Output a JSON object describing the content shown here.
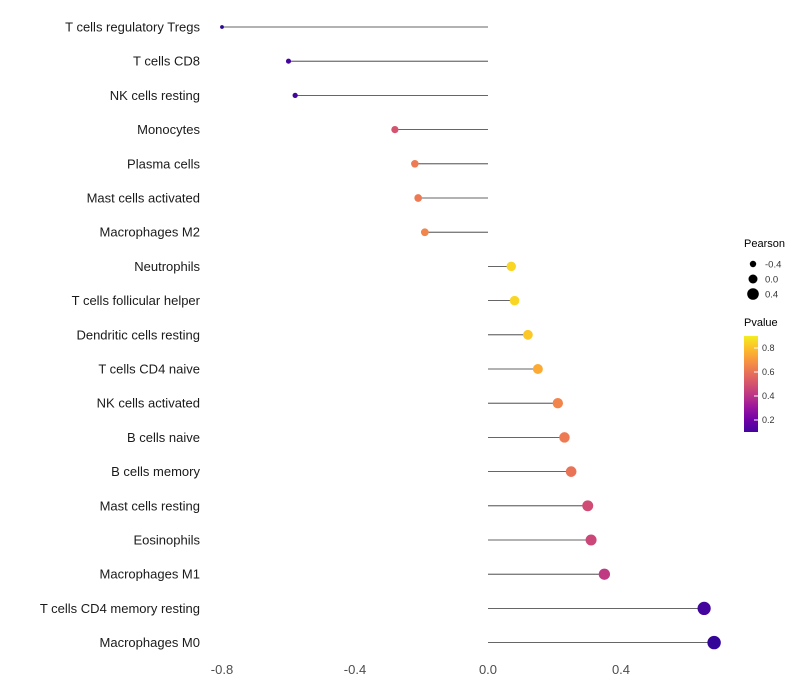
{
  "chart_data": {
    "type": "lollipop",
    "orientation": "horizontal",
    "title": "",
    "xlabel": "",
    "ylabel": "",
    "xlim": [
      -0.87,
      0.76
    ],
    "x_ticks": [
      "-0.8",
      "-0.4",
      "0.0",
      "0.4"
    ],
    "x_tick_values": [
      -0.8,
      -0.4,
      0.0,
      0.4
    ],
    "grid": false,
    "categories": [
      "T cells regulatory  Tregs",
      "T cells CD8",
      "NK cells resting",
      "Monocytes",
      "Plasma cells",
      "Mast cells activated",
      "Macrophages M2",
      "Neutrophils",
      "T cells follicular helper",
      "Dendritic cells resting",
      "T cells CD4 naive",
      "NK cells activated",
      "B cells naive",
      "B cells memory",
      "Mast cells resting",
      "Eosinophils",
      "Macrophages M1",
      "T cells CD4 memory resting",
      "Macrophages M0"
    ],
    "series": [
      {
        "name": "Pearson",
        "values": [
          -0.8,
          -0.6,
          -0.58,
          -0.28,
          -0.22,
          -0.21,
          -0.19,
          0.07,
          0.08,
          0.12,
          0.15,
          0.21,
          0.23,
          0.25,
          0.3,
          0.31,
          0.35,
          0.65,
          0.68
        ]
      },
      {
        "name": "Pvalue",
        "values": [
          0.05,
          0.1,
          0.1,
          0.5,
          0.62,
          0.62,
          0.65,
          0.85,
          0.85,
          0.82,
          0.75,
          0.65,
          0.62,
          0.6,
          0.48,
          0.46,
          0.42,
          0.1,
          0.07
        ]
      }
    ],
    "legend": {
      "position": "right",
      "size_legend": {
        "title": "Pearson",
        "ticks": [
          "-0.4",
          "0.0",
          "0.4"
        ],
        "tick_values": [
          -0.4,
          0.0,
          0.4
        ]
      },
      "color_legend": {
        "title": "Pvalue",
        "ticks": [
          "0.8",
          "0.6",
          "0.4",
          "0.2"
        ],
        "tick_values": [
          0.8,
          0.6,
          0.4,
          0.2
        ],
        "scale_top_color": "#F0F921",
        "scale_bottom_color": "#41049D"
      }
    },
    "colors": {
      "stem": "#333333",
      "axis_text": "#4d4d4d",
      "category_text": "#1a1a1a",
      "background": "#ffffff"
    }
  }
}
